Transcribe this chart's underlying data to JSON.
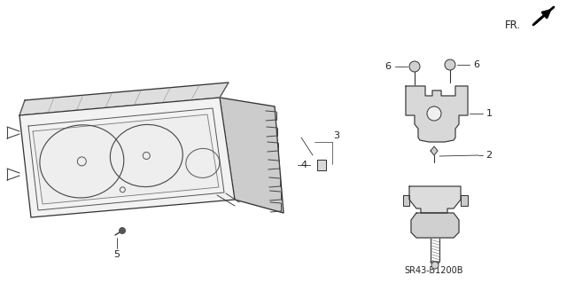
{
  "background_color": "#ffffff",
  "fig_width": 6.4,
  "fig_height": 3.19,
  "dpi": 100,
  "watermark": "SR43-B1200B",
  "line_color": "#333333",
  "text_color": "#222222",
  "label_fontsize": 7.5,
  "watermark_fontsize": 7
}
